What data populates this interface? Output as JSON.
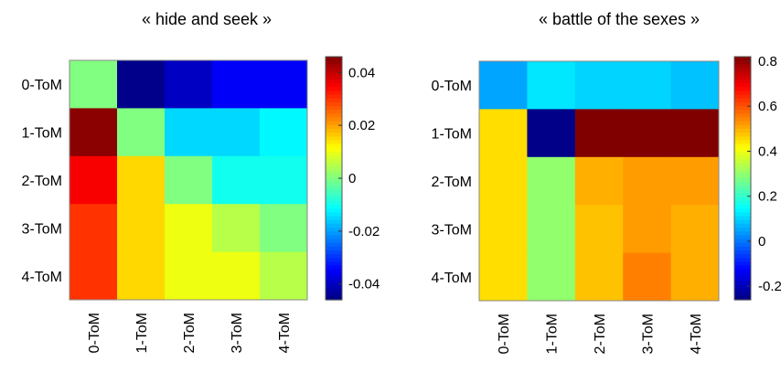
{
  "chart_data": [
    {
      "type": "heatmap",
      "title": "« hide and seek »",
      "x_categories": [
        "0-ToM",
        "1-ToM",
        "2-ToM",
        "3-ToM",
        "4-ToM"
      ],
      "y_categories": [
        "0-ToM",
        "1-ToM",
        "2-ToM",
        "3-ToM",
        "4-ToM"
      ],
      "values": [
        [
          0.0,
          -0.045,
          -0.04,
          -0.035,
          -0.035
        ],
        [
          0.045,
          0.0,
          -0.015,
          -0.015,
          -0.012
        ],
        [
          0.035,
          0.015,
          0.0,
          -0.01,
          -0.01
        ],
        [
          0.03,
          0.015,
          0.01,
          0.005,
          0.0
        ],
        [
          0.03,
          0.015,
          0.01,
          0.01,
          0.005
        ]
      ],
      "colorbar": {
        "range": [
          -0.046,
          0.046
        ],
        "ticks": [
          -0.04,
          -0.02,
          0,
          0.02,
          0.04
        ],
        "tick_labels": [
          "-0.04",
          "-0.02",
          "0",
          "0.02",
          "0.04"
        ]
      }
    },
    {
      "type": "heatmap",
      "title": "« battle of the sexes »",
      "x_categories": [
        "0-ToM",
        "1-ToM",
        "2-ToM",
        "3-ToM",
        "4-ToM"
      ],
      "y_categories": [
        "0-ToM",
        "1-ToM",
        "2-ToM",
        "3-ToM",
        "4-ToM"
      ],
      "values": [
        [
          0.05,
          0.12,
          0.1,
          0.1,
          0.08
        ],
        [
          0.45,
          -0.25,
          0.82,
          0.82,
          0.82
        ],
        [
          0.45,
          0.3,
          0.5,
          0.52,
          0.52
        ],
        [
          0.45,
          0.3,
          0.48,
          0.52,
          0.5
        ],
        [
          0.45,
          0.3,
          0.48,
          0.55,
          0.5
        ]
      ],
      "colorbar": {
        "range": [
          -0.26,
          0.82
        ],
        "ticks": [
          -0.2,
          0,
          0.2,
          0.4,
          0.6,
          0.8
        ],
        "tick_labels": [
          "-0.2",
          "0",
          "0.2",
          "0.4",
          "0.6",
          "0.8"
        ]
      }
    }
  ]
}
